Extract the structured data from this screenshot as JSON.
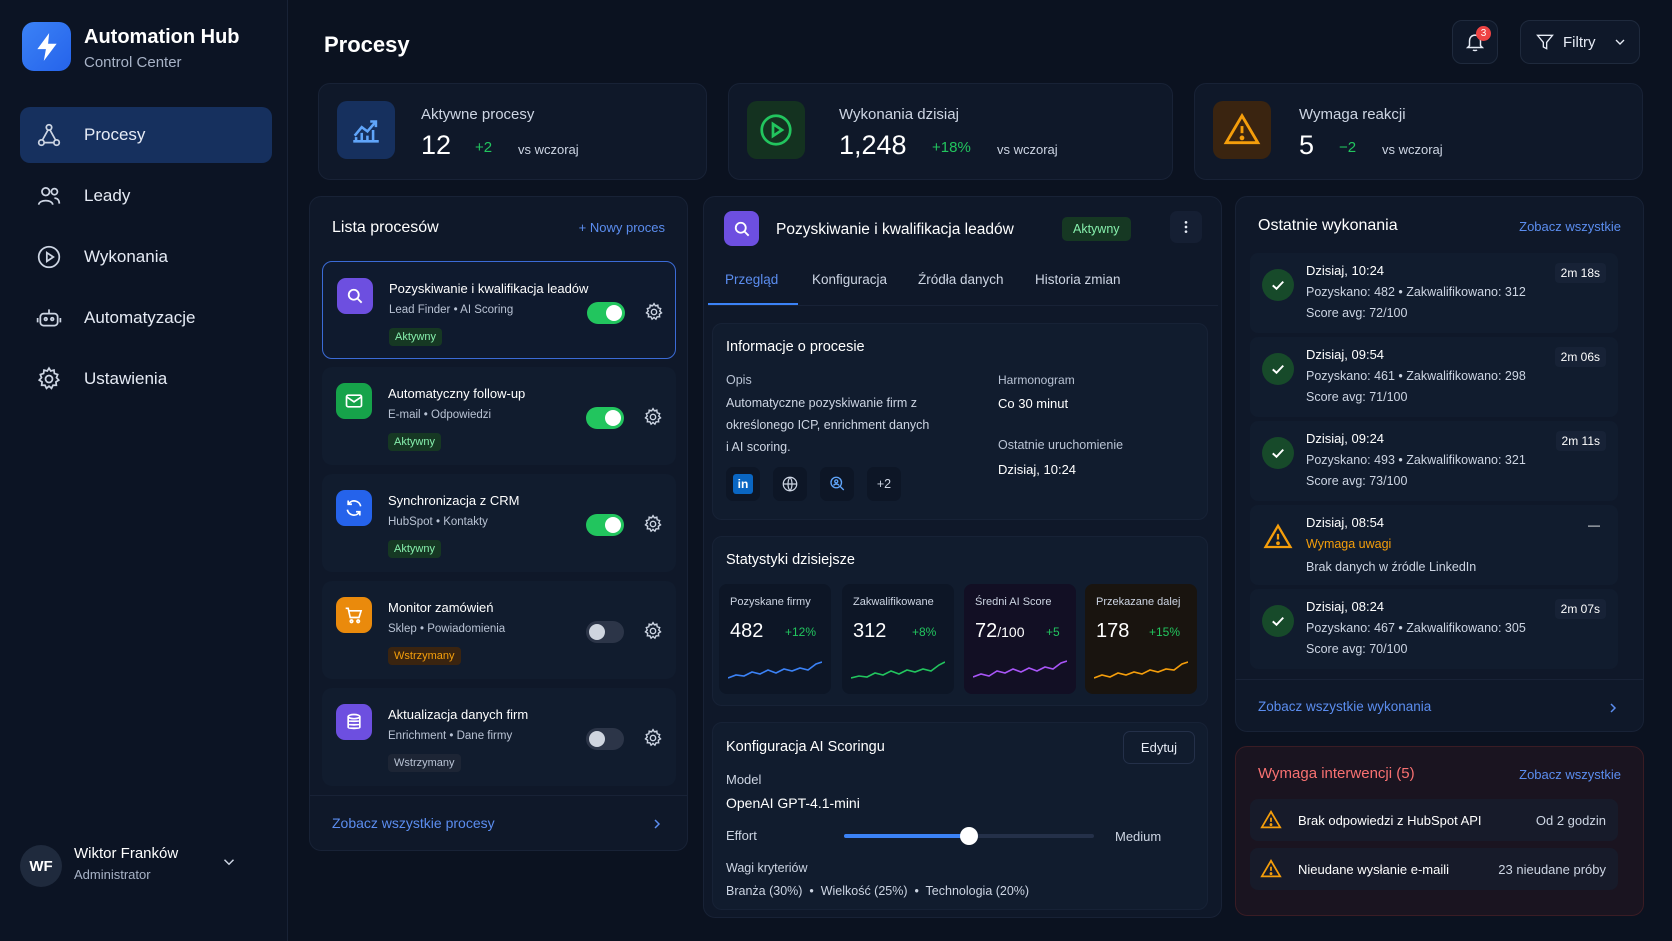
{
  "app": {
    "title": "Automation Hub",
    "subtitle": "Control Center"
  },
  "nav": [
    {
      "label": "Procesy",
      "icon": "workflow-icon",
      "active": true
    },
    {
      "label": "Leady",
      "icon": "users-icon"
    },
    {
      "label": "Wykonania",
      "icon": "play-circle-icon"
    },
    {
      "label": "Automatyzacje",
      "icon": "robot-icon"
    },
    {
      "label": "Ustawienia",
      "icon": "gear-icon"
    }
  ],
  "user": {
    "initials": "WF",
    "name": "Wiktor Franków",
    "role": "Administrator"
  },
  "header": {
    "title": "Procesy",
    "notifications": "3",
    "filters_label": "Filtry"
  },
  "stats": [
    {
      "label": "Aktywne procesy",
      "value": "12",
      "delta": "+2",
      "vs": "vs wczoraj",
      "color": "#3b82f6"
    },
    {
      "label": "Wykonania dzisiaj",
      "value": "1,248",
      "delta": "+18%",
      "vs": "vs wczoraj",
      "color": "#22c55e"
    },
    {
      "label": "Wymaga reakcji",
      "value": "5",
      "delta": "−2",
      "vs": "vs wczoraj",
      "color": "#f59e0b"
    }
  ],
  "process_list": {
    "title": "Lista procesów",
    "new_label": "+ Nowy proces",
    "footer": "Zobacz wszystkie procesy",
    "items": [
      {
        "title": "Pozyskiwanie i kwalifikacja leadów",
        "tag1": "Lead Finder",
        "tag2": "AI Scoring",
        "status": "Aktywny",
        "enabled": true
      },
      {
        "title": "Automatyczny follow-up",
        "tag1": "E-mail",
        "tag2": "Odpowiedzi",
        "status": "Aktywny",
        "enabled": true
      },
      {
        "title": "Synchronizacja z CRM",
        "tag1": "HubSpot",
        "tag2": "Kontakty",
        "status": "Aktywny",
        "enabled": true
      },
      {
        "title": "Monitor zamówień",
        "tag1": "Sklep",
        "tag2": "Powiadomienia",
        "status": "Wstrzymany",
        "enabled": false
      },
      {
        "title": "Aktualizacja danych firm",
        "tag1": "Enrichment",
        "tag2": "Dane firmy",
        "status": "Wstrzymany",
        "enabled": false
      }
    ]
  },
  "detail": {
    "title": "Pozyskiwanie i kwalifikacja leadów",
    "status": "Aktywny",
    "tabs": [
      "Przegląd",
      "Konfiguracja",
      "Źródła danych",
      "Historia zmian"
    ],
    "info": {
      "title": "Informacje o procesie",
      "desc_label": "Opis",
      "desc_line1": "Automatyczne pozyskiwanie firm z",
      "desc_line2": "określonego ICP, enrichment danych",
      "desc_line3": "i AI scoring.",
      "schedule_label": "Harmonogram",
      "schedule_value": "Co 30 minut",
      "last_label": "Ostatnie uruchomienie",
      "last_value": "Dzisiaj, 10:24",
      "more_sources": "+2"
    },
    "today": {
      "title": "Statystyki dzisiejsze",
      "items": [
        {
          "label": "Pozyskane firmy",
          "value": "482",
          "suffix": "",
          "delta": "+12%",
          "color": "#3b82f6"
        },
        {
          "label": "Zakwalifikowane",
          "value": "312",
          "suffix": "",
          "delta": "+8%",
          "color": "#22c55e"
        },
        {
          "label": "Średni AI Score",
          "value": "72",
          "suffix": "/100",
          "delta": "+5",
          "color": "#a855f7"
        },
        {
          "label": "Przekazane dalej",
          "value": "178",
          "suffix": "",
          "delta": "+15%",
          "color": "#f59e0b"
        }
      ]
    },
    "ai": {
      "title": "Konfiguracja AI Scoringu",
      "edit": "Edytuj",
      "model_label": "Model",
      "model_value": "OpenAI GPT-4.1-mini",
      "effort_label": "Effort",
      "effort_value": "Medium",
      "effort_level": 0.5,
      "weights_label": "Wagi kryteriów",
      "weights": "Branża (30%)  •  Wielkość (25%)  •  Technologia (20%)"
    }
  },
  "recent": {
    "title": "Ostatnie wykonania",
    "see_all": "Zobacz wszystkie",
    "footer": "Zobacz wszystkie wykonania",
    "items": [
      {
        "time": "Dzisiaj, 10:24",
        "line1": "Pozyskano: 482  •  Zakwalifikowano: 312",
        "line2": "Score avg: 72/100",
        "duration": "2m 18s",
        "ok": true
      },
      {
        "time": "Dzisiaj, 09:54",
        "line1": "Pozyskano: 461  •  Zakwalifikowano: 298",
        "line2": "Score avg: 71/100",
        "duration": "2m 06s",
        "ok": true
      },
      {
        "time": "Dzisiaj, 09:24",
        "line1": "Pozyskano: 493  •  Zakwalifikowano: 321",
        "line2": "Score avg: 73/100",
        "duration": "2m 11s",
        "ok": true
      },
      {
        "time": "Dzisiaj, 08:54",
        "line1": "Wymaga uwagi",
        "line2": "Brak danych w źródle LinkedIn",
        "duration": "—",
        "ok": false
      },
      {
        "time": "Dzisiaj, 08:24",
        "line1": "Pozyskano: 467  •  Zakwalifikowano: 305",
        "line2": "Score avg: 70/100",
        "duration": "2m 07s",
        "ok": true
      }
    ]
  },
  "intervention": {
    "title": "Wymaga interwencji (5)",
    "see_all": "Zobacz wszystkie",
    "items": [
      {
        "text": "Brak odpowiedzi z HubSpot API",
        "meta": "Od 2 godzin"
      },
      {
        "text": "Nieudane wysłanie e-maili",
        "meta": "23 nieudane próby"
      }
    ]
  }
}
